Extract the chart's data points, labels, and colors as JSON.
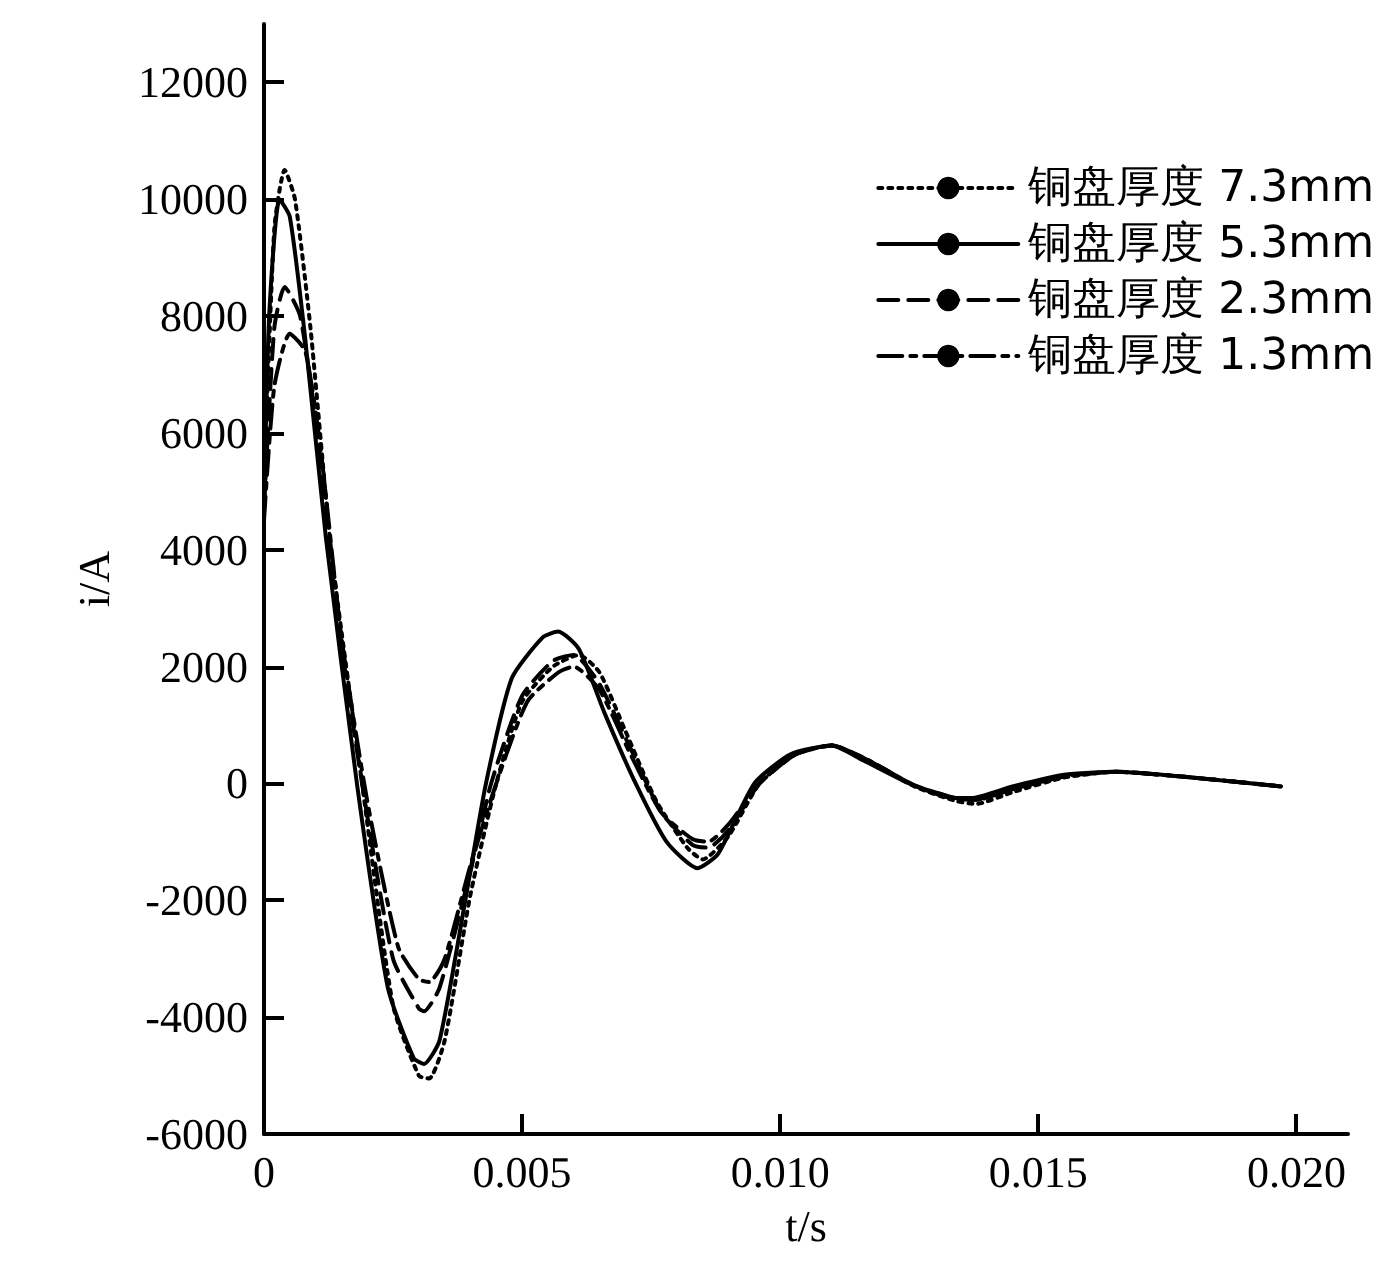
{
  "chart_data": {
    "type": "line",
    "xlabel": "t/s",
    "ylabel": "i/A",
    "xlim": [
      0,
      0.021
    ],
    "ylim": [
      -6000,
      13000
    ],
    "xticks": [
      {
        "value": 0,
        "label": "0"
      },
      {
        "value": 0.005,
        "label": "0.005"
      },
      {
        "value": 0.01,
        "label": "0.010"
      },
      {
        "value": 0.015,
        "label": "0.015"
      },
      {
        "value": 0.02,
        "label": "0.020"
      }
    ],
    "yticks": [
      -6000,
      -4000,
      -2000,
      0,
      2000,
      4000,
      6000,
      8000,
      10000,
      12000
    ],
    "grid": false,
    "legend": "top right",
    "marker": "none",
    "series": [
      {
        "name": "铜盘厚度 7.3mm",
        "color": "#000000",
        "line_style": "dotted",
        "x": [
          0,
          0.0002,
          0.0004,
          0.0006,
          0.0009,
          0.0013,
          0.0019,
          0.0025,
          0.003,
          0.0032,
          0.0035,
          0.004,
          0.0045,
          0.005,
          0.0056,
          0.0061,
          0.0065,
          0.007,
          0.0076,
          0.0082,
          0.0085,
          0.009,
          0.0096,
          0.0103,
          0.011,
          0.0117,
          0.0126,
          0.0134,
          0.0138,
          0.0145,
          0.0155,
          0.0165,
          0.018,
          0.0197
        ],
        "values": [
          5000,
          9500,
          10500,
          10000,
          7800,
          4000,
          0,
          -3800,
          -5000,
          -5050,
          -4400,
          -1900,
          0,
          1400,
          2000,
          2200,
          1900,
          900,
          -300,
          -1100,
          -1300,
          -900,
          0,
          500,
          650,
          400,
          -50,
          -300,
          -350,
          -150,
          100,
          200,
          100,
          -50
        ]
      },
      {
        "name": "铜盘厚度 5.3mm",
        "color": "#000000",
        "line_style": "solid",
        "x": [
          0,
          0.0001,
          0.0003,
          0.0005,
          0.0008,
          0.0012,
          0.0018,
          0.0024,
          0.0029,
          0.0031,
          0.0034,
          0.0039,
          0.0043,
          0.0048,
          0.0054,
          0.0057,
          0.0061,
          0.0066,
          0.0072,
          0.0078,
          0.0084,
          0.0088,
          0.0095,
          0.0102,
          0.011,
          0.0116,
          0.0125,
          0.0132,
          0.0137,
          0.0145,
          0.0155,
          0.0165,
          0.018,
          0.0197
        ],
        "values": [
          4700,
          8000,
          10000,
          9700,
          7600,
          4200,
          0,
          -3500,
          -4700,
          -4800,
          -4400,
          -2000,
          0,
          1800,
          2500,
          2600,
          2300,
          1200,
          0,
          -1000,
          -1450,
          -1200,
          0,
          500,
          650,
          400,
          0,
          -230,
          -250,
          -50,
          150,
          200,
          100,
          -50
        ]
      },
      {
        "name": "铜盘厚度 2.3mm",
        "color": "#000000",
        "line_style": "dashed",
        "x": [
          0,
          0.0002,
          0.0004,
          0.0007,
          0.001,
          0.0014,
          0.0019,
          0.0025,
          0.003,
          0.0031,
          0.0034,
          0.004,
          0.0044,
          0.005,
          0.0056,
          0.006,
          0.0065,
          0.0071,
          0.0077,
          0.0083,
          0.0086,
          0.009,
          0.0096,
          0.0103,
          0.011,
          0.0117,
          0.0126,
          0.0134,
          0.0138,
          0.0145,
          0.0155,
          0.0165,
          0.018,
          0.0197
        ],
        "values": [
          4700,
          7800,
          8500,
          8000,
          6200,
          3000,
          0,
          -3000,
          -3850,
          -3900,
          -3500,
          -1500,
          0,
          1500,
          2100,
          2200,
          1700,
          600,
          -500,
          -1050,
          -1100,
          -800,
          0,
          500,
          650,
          400,
          -30,
          -250,
          -280,
          -100,
          120,
          200,
          100,
          -50
        ]
      },
      {
        "name": "铜盘厚度 1.3mm",
        "color": "#000000",
        "line_style": "dashdot",
        "x": [
          0,
          0.0002,
          0.0005,
          0.0008,
          0.0011,
          0.0015,
          0.002,
          0.0026,
          0.003,
          0.0032,
          0.0035,
          0.004,
          0.0045,
          0.0051,
          0.0057,
          0.006,
          0.0065,
          0.0071,
          0.0077,
          0.0083,
          0.0086,
          0.009,
          0.0096,
          0.0103,
          0.011,
          0.0117,
          0.0126,
          0.0134,
          0.0138,
          0.0145,
          0.0155,
          0.0165,
          0.018,
          0.0197
        ],
        "values": [
          4500,
          6800,
          7700,
          7400,
          5700,
          2500,
          -300,
          -2800,
          -3350,
          -3400,
          -3000,
          -1400,
          0,
          1400,
          1900,
          2000,
          1600,
          500,
          -500,
          -950,
          -1000,
          -700,
          0,
          500,
          650,
          400,
          -30,
          -250,
          -280,
          -100,
          120,
          200,
          100,
          -50
        ]
      }
    ]
  }
}
